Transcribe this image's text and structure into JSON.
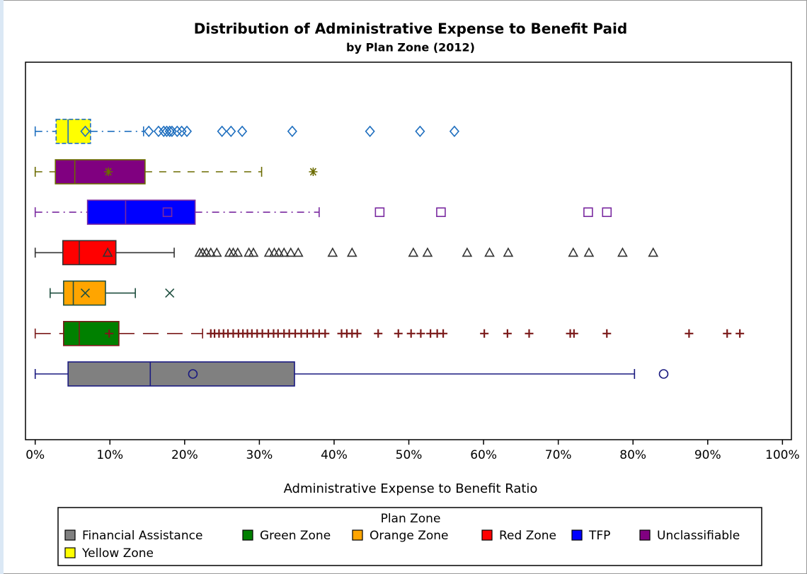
{
  "chart_data": {
    "type": "box",
    "title": "Distribution of Administrative Expense to Benefit Paid",
    "subtitle": "by Plan Zone (2012)",
    "x_label": "Administrative Expense to Benefit Ratio",
    "xlim": [
      -1.3,
      101.2
    ],
    "xticks": [
      {
        "value": 0,
        "label": "0%"
      },
      {
        "value": 10,
        "label": "10%"
      },
      {
        "value": 20,
        "label": "20%"
      },
      {
        "value": 30,
        "label": "30%"
      },
      {
        "value": 40,
        "label": "40%"
      },
      {
        "value": 50,
        "label": "50%"
      },
      {
        "value": 60,
        "label": "60%"
      },
      {
        "value": 70,
        "label": "70%"
      },
      {
        "value": 80,
        "label": "80%"
      },
      {
        "value": 90,
        "label": "90%"
      },
      {
        "value": 100,
        "label": "100%"
      }
    ],
    "legend_title": "Plan Zone",
    "legend": "bottom",
    "series": [
      {
        "name": "Financial Assistance",
        "color": "#808080",
        "line_color": "#1a1a80",
        "marker": "circle",
        "line_style": "solid",
        "min": 0,
        "q1": 4.4,
        "median": 15.4,
        "q3": 34.7,
        "max": 80.2,
        "mean": 21.1,
        "outliers": [
          84.1
        ]
      },
      {
        "name": "Green Zone",
        "color": "#008000",
        "line_color": "#7b1a1a",
        "marker": "plus",
        "line_style": "longdash",
        "min": 0,
        "q1": 3.8,
        "median": 5.9,
        "q3": 11.2,
        "max": 22.4,
        "mean": 9.9,
        "outliers": [
          23.5,
          24.0,
          24.6,
          25.2,
          25.8,
          26.5,
          27.2,
          27.8,
          28.4,
          29.0,
          29.7,
          30.4,
          31.2,
          31.9,
          32.5,
          33.3,
          34.0,
          34.8,
          35.6,
          36.4,
          37.2,
          38.0,
          38.8,
          41.0,
          41.7,
          42.4,
          43.1,
          45.9,
          48.6,
          50.3,
          51.6,
          52.9,
          53.8,
          54.6,
          60.1,
          63.2,
          66.1,
          71.6,
          72.1,
          76.5,
          87.5,
          92.6,
          94.3
        ]
      },
      {
        "name": "Orange Zone",
        "color": "#ffa500",
        "line_color": "#1f4f3f",
        "marker": "x",
        "line_style": "solid",
        "min": 2.0,
        "q1": 3.8,
        "median": 5.1,
        "q3": 9.4,
        "max": 13.4,
        "mean": 6.7,
        "outliers": [
          18.0
        ]
      },
      {
        "name": "Red Zone",
        "color": "#ff0000",
        "line_color": "#333333",
        "marker": "triangle",
        "line_style": "solid",
        "min": 0,
        "q1": 3.7,
        "median": 5.9,
        "q3": 10.8,
        "max": 18.6,
        "mean": 9.7,
        "outliers": [
          22.0,
          22.4,
          22.9,
          23.5,
          24.3,
          26.0,
          26.5,
          27.1,
          28.6,
          29.2,
          31.3,
          32.0,
          32.6,
          33.3,
          34.2,
          35.2,
          39.8,
          42.4,
          50.6,
          52.5,
          57.8,
          60.8,
          63.3,
          72.0,
          74.1,
          78.6,
          82.7
        ]
      },
      {
        "name": "TFP",
        "color": "#0000ff",
        "line_color": "#7a2aa0",
        "marker": "square",
        "line_style": "dashdot",
        "min": 0,
        "q1": 7.0,
        "median": 12.1,
        "q3": 21.4,
        "max": 38.0,
        "mean": 17.7,
        "outliers": [
          46.1,
          54.3,
          74.0,
          76.5
        ]
      },
      {
        "name": "Unclassifiable",
        "color": "#800080",
        "line_color": "#6b6b00",
        "marker": "star",
        "line_style": "dash",
        "min": 0,
        "q1": 2.7,
        "median": 5.3,
        "q3": 14.7,
        "max": 30.3,
        "mean": 9.8,
        "outliers": [
          37.2
        ]
      },
      {
        "name": "Yellow Zone",
        "color": "#ffff00",
        "line_color": "#1f6fbf",
        "marker": "diamond",
        "line_style": "dashdot",
        "min": 0,
        "q1": 2.8,
        "median": 4.4,
        "q3": 7.4,
        "max": 14.5,
        "mean": 6.7,
        "outliers": [
          15.2,
          16.5,
          17.2,
          17.6,
          18.0,
          18.3,
          19.0,
          19.6,
          20.3,
          25.0,
          26.2,
          27.7,
          34.4,
          44.8,
          51.5,
          56.1
        ]
      }
    ]
  }
}
